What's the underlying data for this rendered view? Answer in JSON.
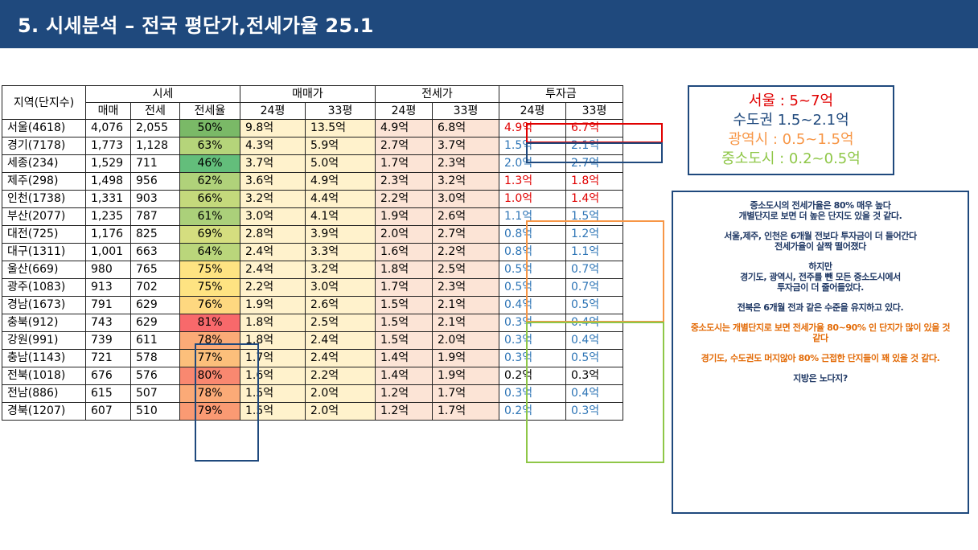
{
  "title": "5. 시세분석 – 전국 평단가,전세가율 25.1",
  "table": {
    "header_top": {
      "region": "지역(단지수)",
      "price": "시세",
      "sale": "매매가",
      "jeonse": "전세가",
      "invest": "투자금"
    },
    "header_sub": [
      "매매",
      "전세",
      "전세율",
      "24평",
      "33평",
      "24평",
      "33평",
      "24평",
      "33평"
    ],
    "rows": [
      {
        "region": "서울(4618)",
        "sale": "4,076",
        "jeonse": "2,055",
        "rate": "50%",
        "rate_color": "#7ab967",
        "s24": "9.8억",
        "s33": "13.5억",
        "j24": "4.9억",
        "j33": "6.8억",
        "i24": "4.9억",
        "i33": "6.7억",
        "i_color": "#e00000"
      },
      {
        "region": "경기(7178)",
        "sale": "1,773",
        "jeonse": "1,128",
        "rate": "63%",
        "rate_color": "#b5d47a",
        "s24": "4.3억",
        "s33": "5.9억",
        "j24": "2.7억",
        "j33": "3.7억",
        "i24": "1.5억",
        "i33": "2.1억",
        "i_color": "#2e75b6"
      },
      {
        "region": "세종(234)",
        "sale": "1,529",
        "jeonse": "711",
        "rate": "46%",
        "rate_color": "#63be7b",
        "s24": "3.7억",
        "s33": "5.0억",
        "j24": "1.7억",
        "j33": "2.3억",
        "i24": "2.0억",
        "i33": "2.7억",
        "i_color": "#2e75b6"
      },
      {
        "region": "제주(298)",
        "sale": "1,498",
        "jeonse": "956",
        "rate": "62%",
        "rate_color": "#b0d27a",
        "s24": "3.6억",
        "s33": "4.9억",
        "j24": "2.3억",
        "j33": "3.2억",
        "i24": "1.3억",
        "i33": "1.8억",
        "i_color": "#e00000"
      },
      {
        "region": "인천(1738)",
        "sale": "1,331",
        "jeonse": "903",
        "rate": "66%",
        "rate_color": "#c4d97c",
        "s24": "3.2억",
        "s33": "4.4억",
        "j24": "2.2억",
        "j33": "3.0억",
        "i24": "1.0억",
        "i33": "1.4억",
        "i_color": "#e00000"
      },
      {
        "region": "부산(2077)",
        "sale": "1,235",
        "jeonse": "787",
        "rate": "61%",
        "rate_color": "#abd07a",
        "s24": "3.0억",
        "s33": "4.1억",
        "j24": "1.9억",
        "j33": "2.6억",
        "i24": "1.1억",
        "i33": "1.5억",
        "i_color": "#2e75b6"
      },
      {
        "region": "대전(725)",
        "sale": "1,176",
        "jeonse": "825",
        "rate": "69%",
        "rate_color": "#d5de7f",
        "s24": "2.8억",
        "s33": "3.9억",
        "j24": "2.0억",
        "j33": "2.7억",
        "i24": "0.8억",
        "i33": "1.2억",
        "i_color": "#2e75b6"
      },
      {
        "region": "대구(1311)",
        "sale": "1,001",
        "jeonse": "663",
        "rate": "64%",
        "rate_color": "#bad67b",
        "s24": "2.4억",
        "s33": "3.3억",
        "j24": "1.6억",
        "j33": "2.2억",
        "i24": "0.8억",
        "i33": "1.1억",
        "i_color": "#2e75b6"
      },
      {
        "region": "울산(669)",
        "sale": "980",
        "jeonse": "765",
        "rate": "75%",
        "rate_color": "#fee382",
        "s24": "2.4억",
        "s33": "3.2억",
        "j24": "1.8억",
        "j33": "2.5억",
        "i24": "0.5억",
        "i33": "0.7억",
        "i_color": "#2e75b6"
      },
      {
        "region": "광주(1083)",
        "sale": "913",
        "jeonse": "702",
        "rate": "75%",
        "rate_color": "#fee382",
        "s24": "2.2억",
        "s33": "3.0억",
        "j24": "1.7억",
        "j33": "2.3억",
        "i24": "0.5억",
        "i33": "0.7억",
        "i_color": "#2e75b6"
      },
      {
        "region": "경남(1673)",
        "sale": "791",
        "jeonse": "629",
        "rate": "76%",
        "rate_color": "#fed880",
        "s24": "1.9억",
        "s33": "2.6억",
        "j24": "1.5억",
        "j33": "2.1억",
        "i24": "0.4억",
        "i33": "0.5억",
        "i_color": "#2e75b6"
      },
      {
        "region": "충북(912)",
        "sale": "743",
        "jeonse": "629",
        "rate": "81%",
        "rate_color": "#f8696b",
        "s24": "1.8억",
        "s33": "2.5억",
        "j24": "1.5억",
        "j33": "2.1억",
        "i24": "0.3억",
        "i33": "0.4억",
        "i_color": "#2e75b6"
      },
      {
        "region": "강원(991)",
        "sale": "739",
        "jeonse": "611",
        "rate": "78%",
        "rate_color": "#fbaa77",
        "s24": "1.8억",
        "s33": "2.4억",
        "j24": "1.5억",
        "j33": "2.0억",
        "i24": "0.3억",
        "i33": "0.4억",
        "i_color": "#2e75b6"
      },
      {
        "region": "충남(1143)",
        "sale": "721",
        "jeonse": "578",
        "rate": "77%",
        "rate_color": "#fcbf7b",
        "s24": "1.7억",
        "s33": "2.4억",
        "j24": "1.4억",
        "j33": "1.9억",
        "i24": "0.3억",
        "i33": "0.5억",
        "i_color": "#2e75b6"
      },
      {
        "region": "전북(1018)",
        "sale": "676",
        "jeonse": "576",
        "rate": "80%",
        "rate_color": "#f98870",
        "s24": "1.6억",
        "s33": "2.2억",
        "j24": "1.4억",
        "j33": "1.9억",
        "i24": "0.2억",
        "i33": "0.3억",
        "i_color": "#000000"
      },
      {
        "region": "전남(886)",
        "sale": "615",
        "jeonse": "507",
        "rate": "78%",
        "rate_color": "#fbaa77",
        "s24": "1.5억",
        "s33": "2.0억",
        "j24": "1.2억",
        "j33": "1.7억",
        "i24": "0.3억",
        "i33": "0.4억",
        "i_color": "#2e75b6"
      },
      {
        "region": "경북(1207)",
        "sale": "607",
        "jeonse": "510",
        "rate": "79%",
        "rate_color": "#fa9a73",
        "s24": "1.5억",
        "s33": "2.0억",
        "j24": "1.2억",
        "j33": "1.7억",
        "i24": "0.2억",
        "i33": "0.3억",
        "i_color": "#2e75b6"
      }
    ]
  },
  "legend": [
    {
      "text": "서울 : 5~7억",
      "color": "#e00000"
    },
    {
      "text": "수도권 1.5~2.1억",
      "color": "#1f497d"
    },
    {
      "text": "광역시 : 0.5~1.5억",
      "color": "#f79646"
    },
    {
      "text": "중소도시 : 0.2~0.5억",
      "color": "#8fc748"
    }
  ],
  "notes": [
    {
      "lines": [
        "중소도시의 전세가율은 80% 매우 높다",
        "개별단지로 보면 더 높은 단지도 있을 것 같다."
      ],
      "color": "#1f3864"
    },
    {
      "lines": [
        "서울,제주, 인천은 6개월 전보다 투자금이 더 들어간다",
        "전세가율이 살짝 떨어졌다"
      ],
      "color": "#1f3864"
    },
    {
      "lines": [
        "하지만",
        "경기도, 광역시, 전주를 뺀 모든 중소도시에서",
        "투자금이 더 줄어들었다."
      ],
      "color": "#1f3864"
    },
    {
      "lines": [
        "전북은 6개월 전과 같은 수준을 유지하고 있다."
      ],
      "color": "#1f3864"
    },
    {
      "lines": [
        "중소도시는 개별단지로 보면 전세가율 80~90% 인 단지가 많이 있을 것",
        "같다"
      ],
      "color": "#e36c09"
    },
    {
      "lines": [
        "경기도, 수도권도 머지않아 80% 근접한 단지들이 꽤 있을 것 같다."
      ],
      "color": "#e36c09"
    },
    {
      "lines": [
        "지방은 노다지?"
      ],
      "color": "#1f3864"
    }
  ],
  "highlight_colors": {
    "seoul": "#e00000",
    "gyeonggi": "#1f497d",
    "metro": "#f79646",
    "small_city": "#8fc748",
    "rate_box": "#1f497d"
  }
}
